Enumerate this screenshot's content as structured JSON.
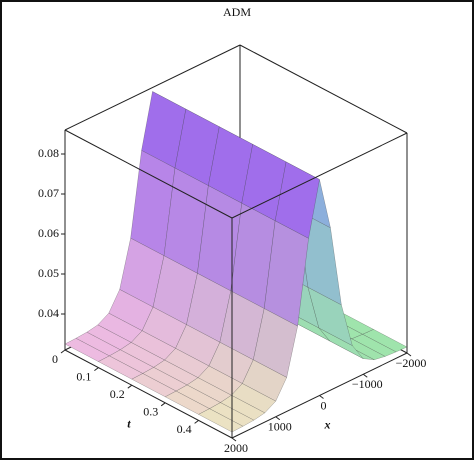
{
  "chart_data": {
    "type": "surface",
    "title": "ADM",
    "x_label": "x",
    "t_label": "t",
    "x": [
      -2000,
      -1750,
      -1500,
      -1250,
      -1000,
      -750,
      -500,
      -250,
      0,
      250,
      500,
      750,
      1000,
      1250,
      1500,
      1750,
      2000
    ],
    "t": [
      0,
      0.1,
      0.2,
      0.3,
      0.4,
      0.5
    ],
    "values": [
      0.0325,
      0.0326,
      0.0328,
      0.0333,
      0.0349,
      0.0395,
      0.051,
      0.0716,
      0.085,
      0.0716,
      0.051,
      0.0395,
      0.0349,
      0.0333,
      0.0328,
      0.0326,
      0.0325
    ],
    "xlim": [
      -2000,
      2000
    ],
    "tlim": [
      0,
      0.5
    ],
    "zlim": [
      0.031,
      0.086
    ],
    "xticks": [
      {
        "value": -2000,
        "label": "−2000"
      },
      {
        "value": -1000,
        "label": "−1000"
      },
      0,
      1000,
      2000
    ],
    "tticks": [
      0,
      0.1,
      0.2,
      0.3,
      0.4
    ],
    "zticks": [
      0.04,
      0.05,
      0.06,
      0.07,
      0.08
    ]
  }
}
